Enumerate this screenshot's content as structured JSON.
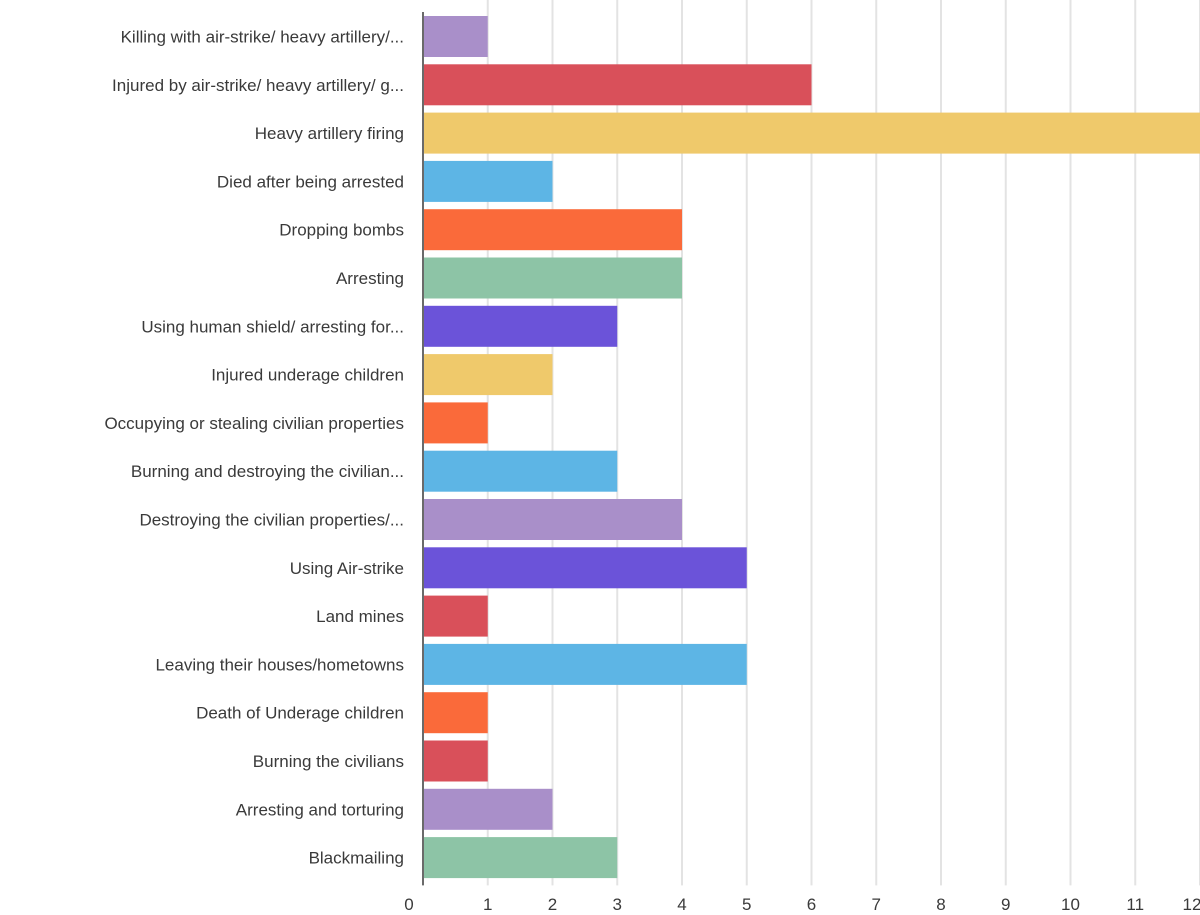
{
  "chart_data": {
    "type": "bar",
    "orientation": "horizontal",
    "title": "",
    "xlabel": "",
    "ylabel": "",
    "xlim": [
      0,
      12
    ],
    "grid": true,
    "categories": [
      "Killing with air-strike/ heavy artillery/...",
      "Injured by air-strike/ heavy artillery/ g...",
      "Heavy artillery firing",
      "Died after being arrested",
      "Dropping bombs",
      "Arresting",
      "Using human shield/ arresting for...",
      "Injured underage children",
      "Occupying or stealing civilian properties",
      "Burning and destroying the civilian...",
      "Destroying the civilian properties/...",
      "Using Air-strike",
      "Land mines",
      "Leaving their houses/hometowns",
      "Death of Underage children",
      "Burning the civilians",
      "Arresting and torturing",
      "Blackmailing"
    ],
    "values": [
      1,
      6,
      12,
      2,
      4,
      4,
      3,
      2,
      1,
      3,
      4,
      5,
      1,
      5,
      1,
      1,
      2,
      3
    ],
    "colors": [
      "#a98fc9",
      "#d9505a",
      "#efc96b",
      "#5db5e5",
      "#fa6a3a",
      "#8dc4a6",
      "#6b53d9",
      "#efc96b",
      "#fa6a3a",
      "#5db5e5",
      "#a98fc9",
      "#6b53d9",
      "#d9505a",
      "#5db5e5",
      "#fa6a3a",
      "#d9505a",
      "#a98fc9",
      "#8dc4a6"
    ],
    "x_ticks": [
      "0",
      "1",
      "2",
      "3",
      "4",
      "5",
      "6",
      "7",
      "8",
      "9",
      "10",
      "11",
      "12"
    ]
  }
}
